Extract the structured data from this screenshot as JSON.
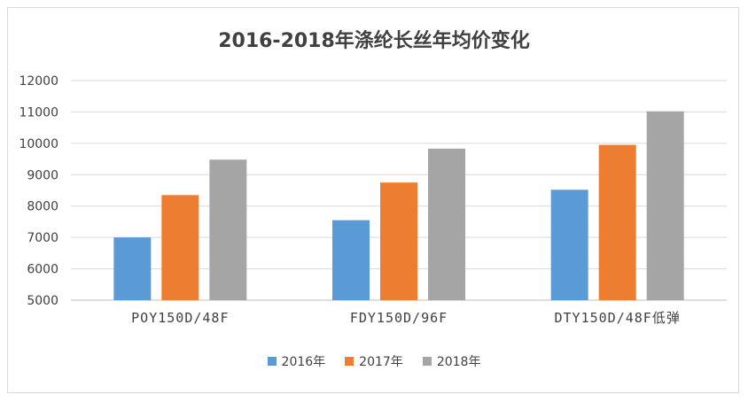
{
  "chart_data": {
    "type": "bar",
    "title": "2016-2018年涤纶长丝年均价变化",
    "xlabel": "",
    "ylabel": "",
    "ylim": [
      5000,
      12000
    ],
    "yticks": [
      5000,
      6000,
      7000,
      8000,
      9000,
      10000,
      11000,
      12000
    ],
    "grid": true,
    "legend_position": "bottom",
    "categories": [
      "POY150D/48F",
      "FDY150D/96F",
      "DTY150D/48F低弹"
    ],
    "series": [
      {
        "name": "2016年",
        "color": "#5b9bd5",
        "values": [
          7000,
          7550,
          8520
        ]
      },
      {
        "name": "2017年",
        "color": "#ed7d31",
        "values": [
          8350,
          8750,
          9950
        ]
      },
      {
        "name": "2018年",
        "color": "#a5a5a5",
        "values": [
          9480,
          9830,
          11020
        ]
      }
    ]
  }
}
